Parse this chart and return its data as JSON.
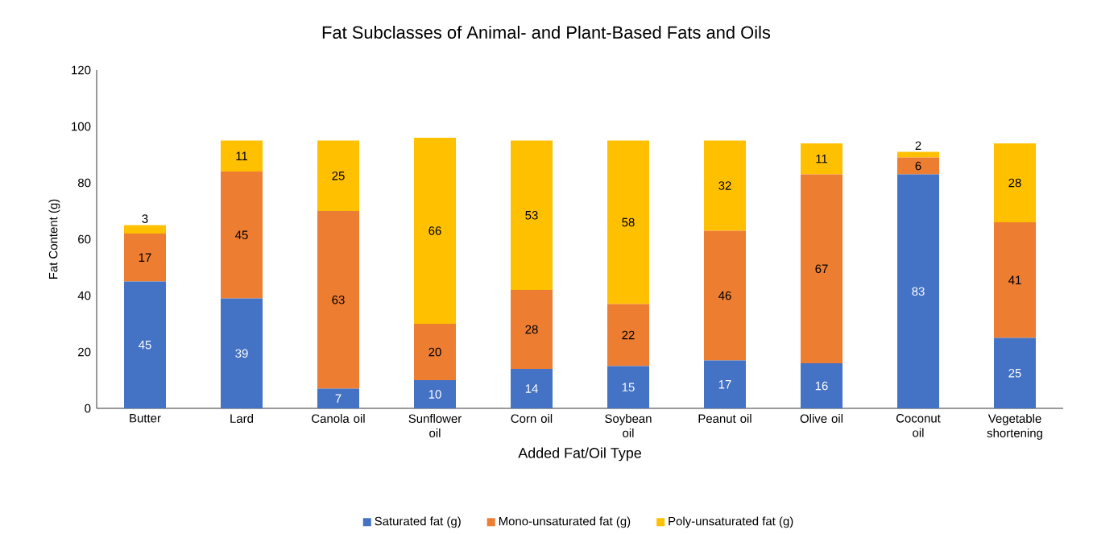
{
  "chart_data": {
    "type": "bar",
    "stacked": true,
    "title": "Fat Subclasses  of Animal- and Plant-Based Fats and Oils",
    "xlabel": "Added Fat/Oil Type",
    "ylabel": "Fat Content  (g)",
    "categories": [
      "Butter",
      "Lard",
      "Canola oil",
      "Sunflower oil",
      "Corn oil",
      "Soybean oil",
      "Peanut oil",
      "Olive oil",
      "Coconut oil",
      "Vegetable shortening"
    ],
    "series": [
      {
        "name": "Saturated fat (g)",
        "color": "#4472c4",
        "values": [
          45,
          39,
          7,
          10,
          14,
          15,
          17,
          16,
          83,
          25
        ]
      },
      {
        "name": "Mono-unsaturated fat (g)",
        "color": "#ed7d31",
        "values": [
          17,
          45,
          63,
          20,
          28,
          22,
          46,
          67,
          6,
          41
        ]
      },
      {
        "name": "Poly-unsaturated fat (g)",
        "color": "#ffc000",
        "values": [
          3,
          11,
          25,
          66,
          53,
          58,
          32,
          11,
          2,
          28
        ]
      }
    ],
    "ylim": [
      0,
      120
    ],
    "yticks": [
      0,
      20,
      40,
      60,
      80,
      100,
      120
    ],
    "data_labels": true,
    "legend": "bottom",
    "grid": false
  }
}
